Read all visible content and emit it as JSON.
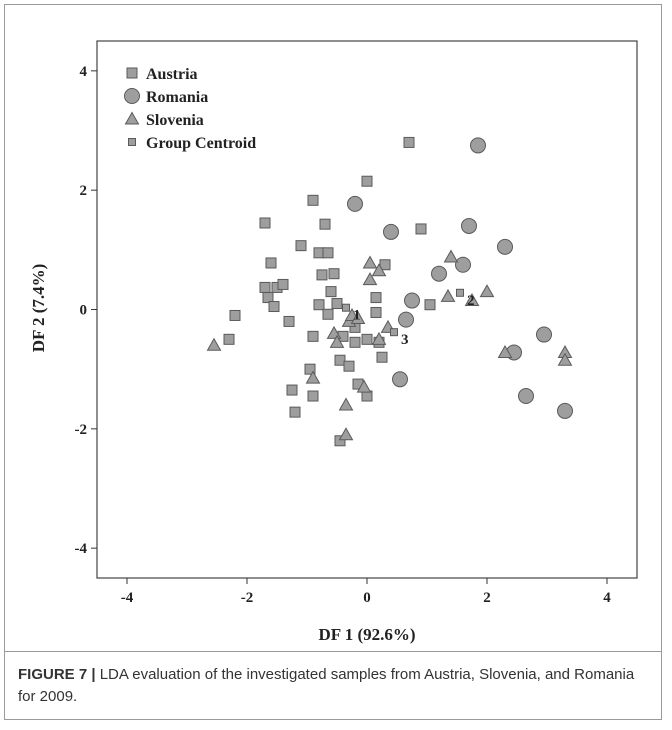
{
  "chart_data": {
    "type": "scatter",
    "xlabel": "DF 1 (92.6%)",
    "ylabel": "DF 2 (7.4%)",
    "xlim": [
      -4.5,
      4.5
    ],
    "ylim": [
      -4.5,
      4.5
    ],
    "x_ticks": [
      -4,
      -2,
      0,
      2,
      4
    ],
    "y_ticks": [
      -4,
      -2,
      0,
      2,
      4
    ],
    "grid": false,
    "legend_position": "top-left",
    "legend": [
      "Austria",
      "Romania",
      "Slovenia",
      "Group Centroid"
    ],
    "series": [
      {
        "name": "Austria",
        "marker": "square",
        "points": [
          [
            0.7,
            2.8
          ],
          [
            0.0,
            2.15
          ],
          [
            -0.9,
            1.83
          ],
          [
            -0.7,
            1.43
          ],
          [
            -1.7,
            1.45
          ],
          [
            -1.1,
            1.07
          ],
          [
            -0.8,
            0.95
          ],
          [
            -0.65,
            0.95
          ],
          [
            0.9,
            1.35
          ],
          [
            -1.6,
            0.78
          ],
          [
            -0.75,
            0.58
          ],
          [
            -0.55,
            0.6
          ],
          [
            -0.6,
            0.3
          ],
          [
            -0.5,
            0.1
          ],
          [
            -0.8,
            0.08
          ],
          [
            -1.7,
            0.37
          ],
          [
            -1.5,
            0.37
          ],
          [
            -1.4,
            0.42
          ],
          [
            -1.65,
            0.2
          ],
          [
            -1.55,
            0.05
          ],
          [
            -2.2,
            -0.1
          ],
          [
            -2.3,
            -0.5
          ],
          [
            -1.3,
            -0.2
          ],
          [
            -0.9,
            -0.45
          ],
          [
            -0.65,
            -0.08
          ],
          [
            -0.4,
            -0.45
          ],
          [
            -0.2,
            -0.55
          ],
          [
            0.0,
            -0.5
          ],
          [
            0.2,
            -0.55
          ],
          [
            0.15,
            -0.05
          ],
          [
            0.3,
            0.75
          ],
          [
            1.05,
            0.08
          ],
          [
            -0.95,
            -1.0
          ],
          [
            -1.25,
            -1.35
          ],
          [
            -1.2,
            -1.72
          ],
          [
            -0.9,
            -1.45
          ],
          [
            -0.45,
            -0.85
          ],
          [
            -0.3,
            -0.95
          ],
          [
            -0.2,
            -0.3
          ],
          [
            -0.15,
            -1.25
          ],
          [
            0.0,
            -1.45
          ],
          [
            -0.45,
            -2.2
          ],
          [
            0.25,
            -0.8
          ],
          [
            0.15,
            0.2
          ]
        ]
      },
      {
        "name": "Romania",
        "marker": "circle",
        "points": [
          [
            1.85,
            2.75
          ],
          [
            -0.2,
            1.77
          ],
          [
            0.4,
            1.3
          ],
          [
            1.7,
            1.4
          ],
          [
            2.3,
            1.05
          ],
          [
            1.6,
            0.75
          ],
          [
            1.2,
            0.6
          ],
          [
            0.75,
            0.15
          ],
          [
            0.65,
            -0.17
          ],
          [
            0.55,
            -1.17
          ],
          [
            2.45,
            -0.72
          ],
          [
            2.95,
            -0.42
          ],
          [
            2.65,
            -1.45
          ],
          [
            3.3,
            -1.7
          ]
        ]
      },
      {
        "name": "Slovenia",
        "marker": "triangle",
        "points": [
          [
            -2.55,
            -0.6
          ],
          [
            0.05,
            0.78
          ],
          [
            0.2,
            0.65
          ],
          [
            0.05,
            0.5
          ],
          [
            1.4,
            0.88
          ],
          [
            1.35,
            0.22
          ],
          [
            1.75,
            0.15
          ],
          [
            2.0,
            0.3
          ],
          [
            -0.55,
            -0.4
          ],
          [
            -0.5,
            -0.55
          ],
          [
            -0.3,
            -0.2
          ],
          [
            -0.25,
            -0.1
          ],
          [
            -0.15,
            -0.15
          ],
          [
            0.35,
            -0.3
          ],
          [
            0.2,
            -0.5
          ],
          [
            -0.9,
            -1.15
          ],
          [
            -0.35,
            -1.6
          ],
          [
            -0.35,
            -2.1
          ],
          [
            -0.05,
            -1.3
          ],
          [
            2.3,
            -0.72
          ],
          [
            3.3,
            -0.72
          ],
          [
            3.3,
            -0.85
          ]
        ]
      },
      {
        "name": "Group Centroid",
        "marker": "small-square",
        "points": [
          [
            -0.35,
            0.03
          ],
          [
            1.55,
            0.28
          ],
          [
            0.45,
            -0.38
          ]
        ],
        "labels": [
          "1",
          "2",
          "3"
        ]
      }
    ],
    "colors": {
      "marker_fill": "#9e9e9e",
      "marker_stroke": "#5a5a5a",
      "axis": "#333333",
      "frame": "#444444"
    }
  },
  "caption": {
    "figure_number": "FIGURE 7 |",
    "text": " LDA evaluation of the investigated samples from Austria, Slovenia, and Romania for 2009."
  }
}
